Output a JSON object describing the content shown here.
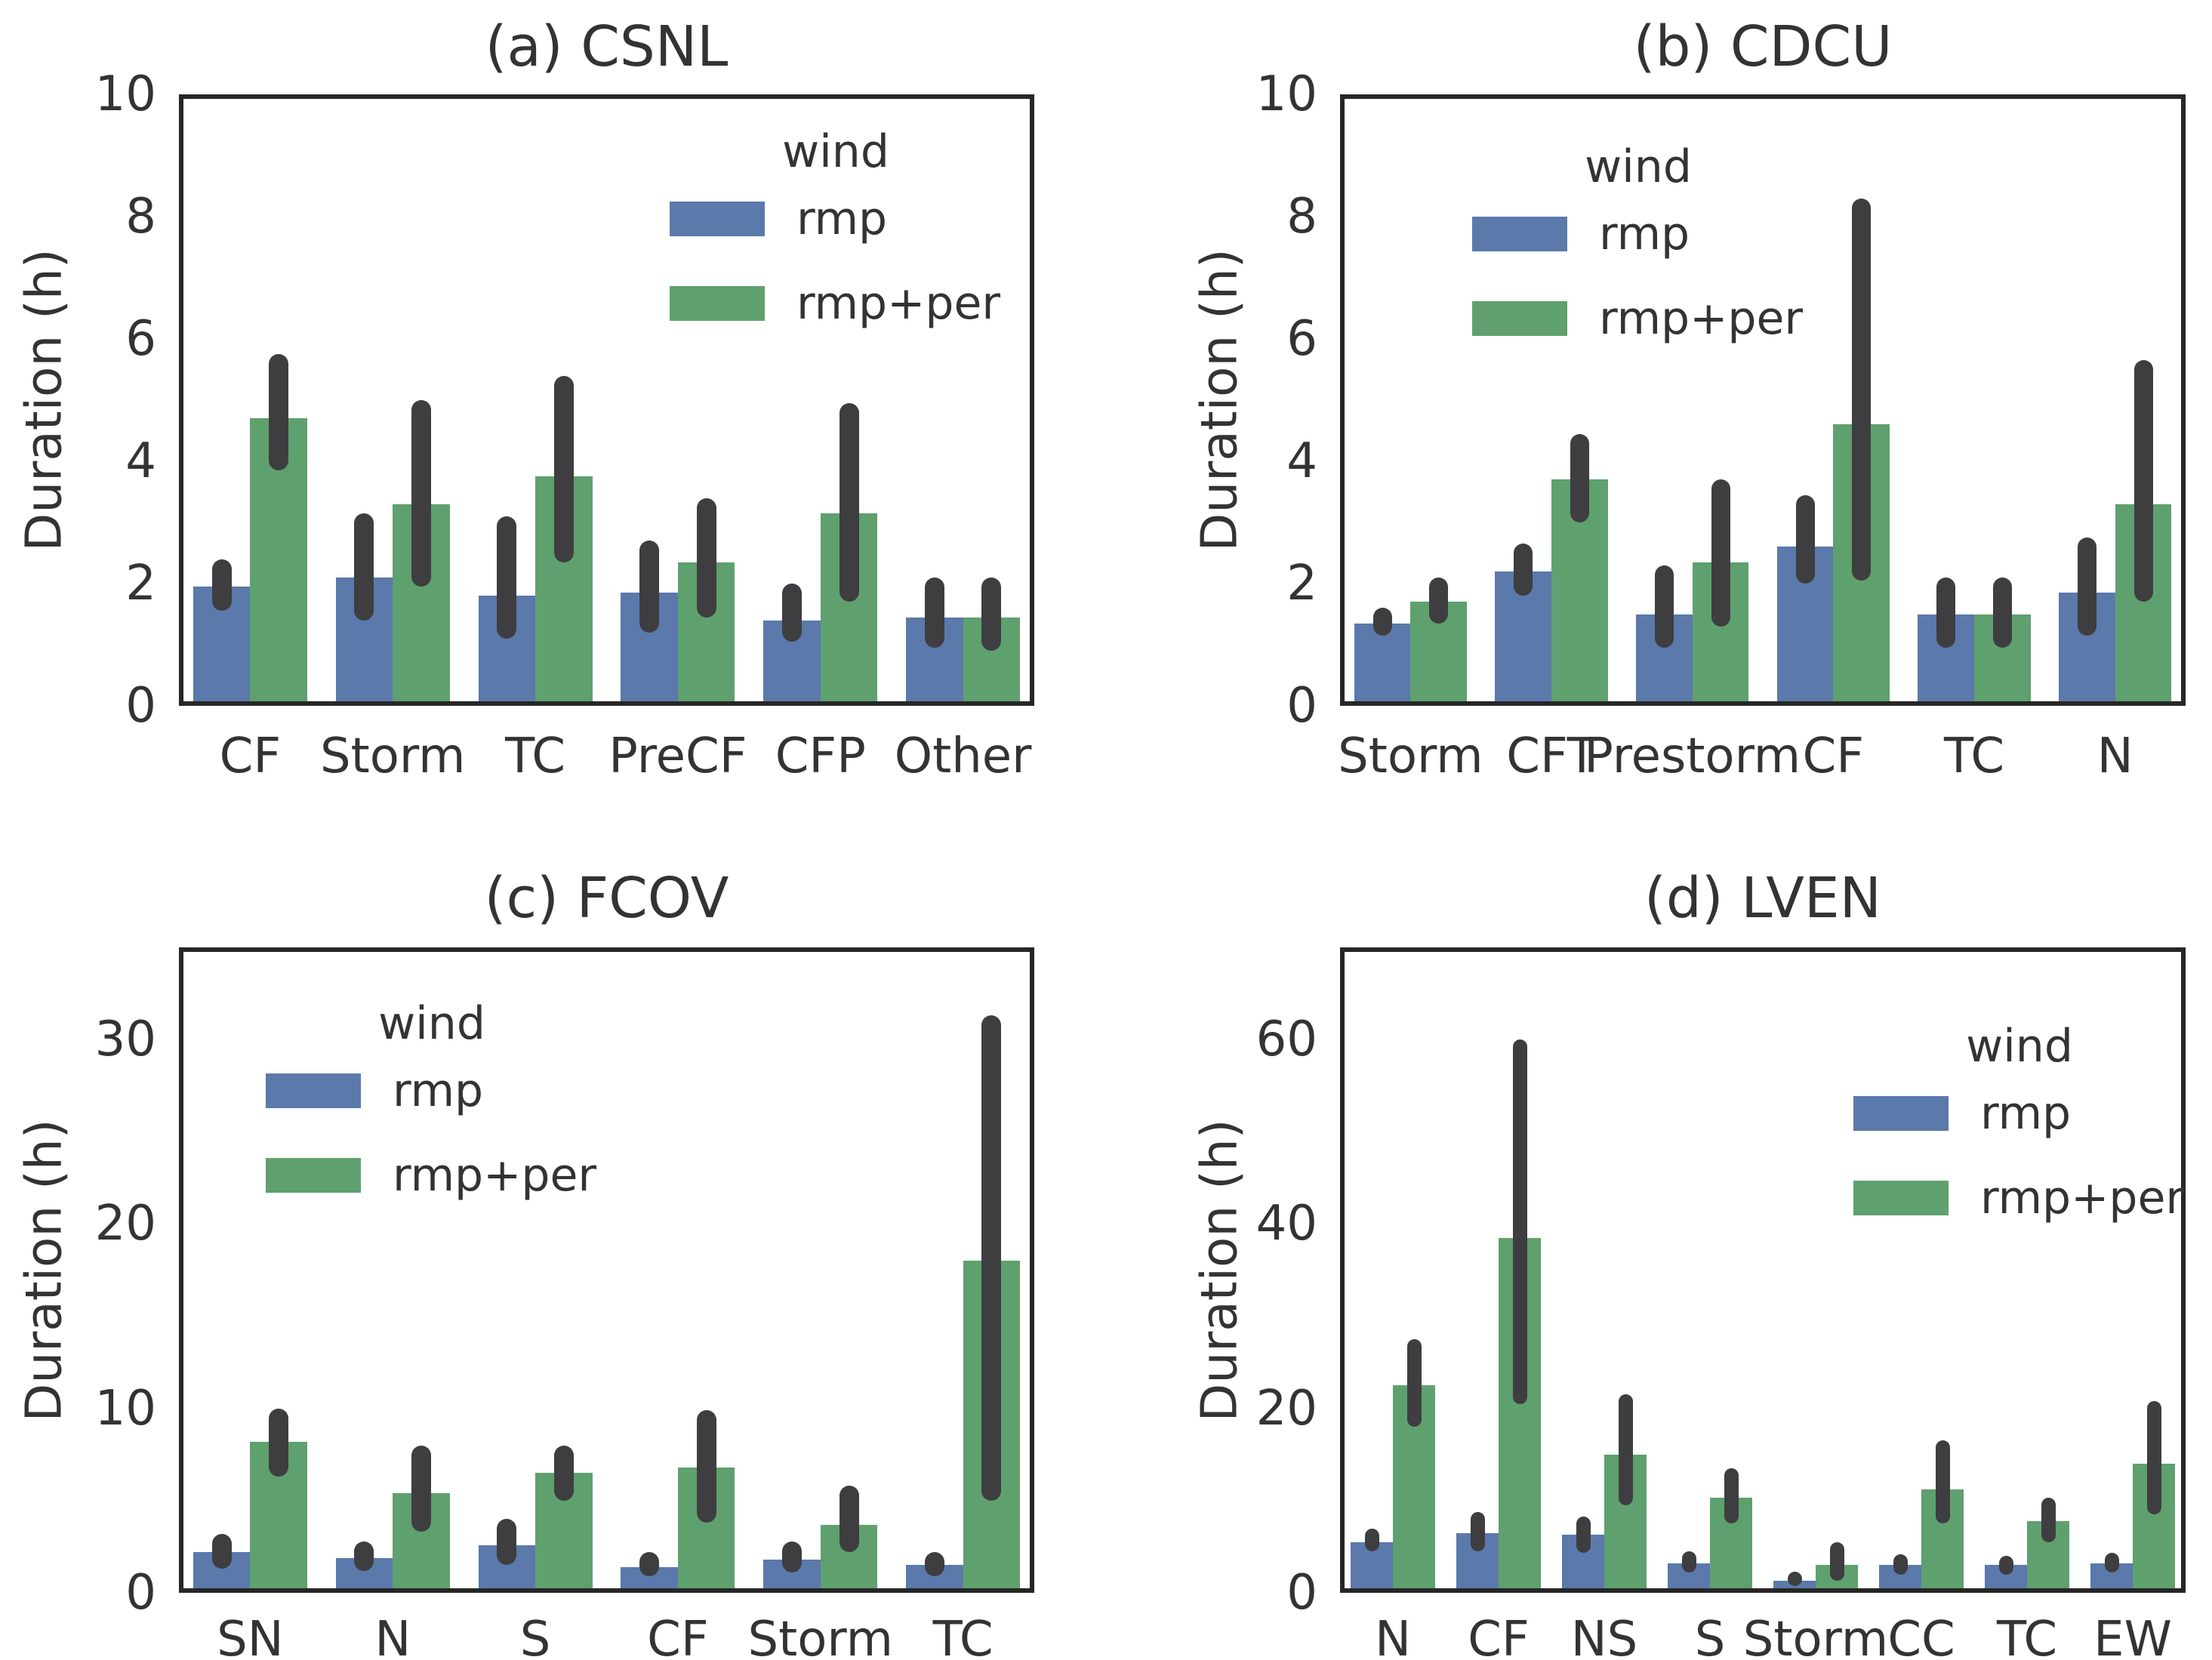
{
  "figure": {
    "background": "#ffffff",
    "spine_color": "#262626",
    "error_bar_color": "#3e3e40",
    "rmp_color": "#5b79ab",
    "rmp_per_color": "#5fa06f"
  },
  "chart_data": [
    {
      "type": "bar",
      "title": "(a) CSNL",
      "ylabel": "Duration (h)",
      "ylim": [
        0,
        10
      ],
      "yticks": [
        0,
        2,
        4,
        6,
        8,
        10
      ],
      "grid": false,
      "categories": [
        "CF",
        "Storm",
        "TC",
        "PreCF",
        "CFP",
        "Other"
      ],
      "legend": {
        "title": "wind",
        "position": "upper-right"
      },
      "series": [
        {
          "name": "rmp",
          "color": "#5b79ab",
          "values": [
            1.95,
            2.1,
            1.8,
            1.85,
            1.4,
            1.45
          ],
          "error_low": [
            1.55,
            1.4,
            1.1,
            1.2,
            1.05,
            0.95
          ],
          "error_high": [
            2.4,
            3.15,
            3.1,
            2.7,
            2.0,
            2.1
          ]
        },
        {
          "name": "rmp+per",
          "color": "#5fa06f",
          "values": [
            4.7,
            3.3,
            3.75,
            2.35,
            3.15,
            1.45
          ],
          "error_low": [
            3.85,
            1.95,
            2.35,
            1.45,
            1.7,
            0.9
          ],
          "error_high": [
            5.75,
            5.0,
            5.4,
            3.4,
            4.95,
            2.1
          ]
        }
      ]
    },
    {
      "type": "bar",
      "title": "(b) CDCU",
      "ylabel": "Duration (h)",
      "ylim": [
        0,
        10
      ],
      "yticks": [
        0,
        2,
        4,
        6,
        8,
        10
      ],
      "grid": false,
      "categories": [
        "Storm",
        "CFT",
        "Prestorm",
        "CF",
        "TC",
        "N"
      ],
      "legend": {
        "title": "wind",
        "position": "upper-left"
      },
      "series": [
        {
          "name": "rmp",
          "color": "#5b79ab",
          "values": [
            1.35,
            2.2,
            1.5,
            2.6,
            1.5,
            1.85
          ],
          "error_low": [
            1.15,
            1.8,
            0.95,
            2.0,
            0.95,
            1.15
          ],
          "error_high": [
            1.6,
            2.65,
            2.3,
            3.45,
            2.1,
            2.75
          ]
        },
        {
          "name": "rmp+per",
          "color": "#5fa06f",
          "values": [
            1.7,
            3.7,
            2.35,
            4.6,
            1.5,
            3.3
          ],
          "error_low": [
            1.35,
            3.0,
            1.3,
            2.05,
            0.95,
            1.7
          ],
          "error_high": [
            2.1,
            4.45,
            3.7,
            8.3,
            2.1,
            5.65
          ]
        }
      ]
    },
    {
      "type": "bar",
      "title": "(c) FCOV",
      "ylabel": "Duration (h)",
      "ylim": [
        0,
        35
      ],
      "yticks": [
        0,
        10,
        20,
        30
      ],
      "grid": false,
      "categories": [
        "SN",
        "N",
        "S",
        "CF",
        "Storm",
        "TC"
      ],
      "legend": {
        "title": "wind",
        "position": "upper-left"
      },
      "series": [
        {
          "name": "rmp",
          "color": "#5b79ab",
          "values": [
            2.2,
            1.9,
            2.6,
            1.4,
            1.8,
            1.5
          ],
          "error_low": [
            1.3,
            1.2,
            1.5,
            0.9,
            1.1,
            0.9
          ],
          "error_high": [
            3.2,
            2.8,
            4.0,
            2.2,
            2.8,
            2.2
          ]
        },
        {
          "name": "rmp+per",
          "color": "#5fa06f",
          "values": [
            8.2,
            5.4,
            6.5,
            6.8,
            3.7,
            18.0
          ],
          "error_low": [
            6.3,
            3.3,
            5.0,
            3.8,
            2.2,
            5.0
          ],
          "error_high": [
            10.0,
            8.0,
            8.0,
            9.9,
            5.8,
            31.3
          ]
        }
      ]
    },
    {
      "type": "bar",
      "title": "(d) LVEN",
      "ylabel": "Duration (h)",
      "ylim": [
        0,
        70
      ],
      "yticks": [
        0,
        20,
        40,
        60
      ],
      "grid": false,
      "categories": [
        "N",
        "CF",
        "NS",
        "S",
        "Storm",
        "CC",
        "TC",
        "EW"
      ],
      "legend": {
        "title": "wind",
        "position": "upper-right"
      },
      "series": [
        {
          "name": "rmp",
          "color": "#5b79ab",
          "values": [
            5.5,
            6.5,
            6.3,
            3.2,
            1.3,
            3.0,
            3.0,
            3.2
          ],
          "error_low": [
            4.5,
            4.5,
            4.3,
            2.2,
            0.7,
            2.0,
            2.0,
            2.2
          ],
          "error_high": [
            7.0,
            8.8,
            8.3,
            4.5,
            2.3,
            4.2,
            4.0,
            4.3
          ]
        },
        {
          "name": "rmp+per",
          "color": "#5fa06f",
          "values": [
            22.5,
            38.5,
            15.0,
            10.3,
            3.0,
            11.2,
            7.8,
            14.0
          ],
          "error_low": [
            18.0,
            20.5,
            9.5,
            7.5,
            1.3,
            7.5,
            5.5,
            8.5
          ],
          "error_high": [
            27.5,
            60.0,
            21.5,
            13.5,
            5.5,
            16.5,
            10.3,
            20.8
          ]
        }
      ]
    }
  ]
}
